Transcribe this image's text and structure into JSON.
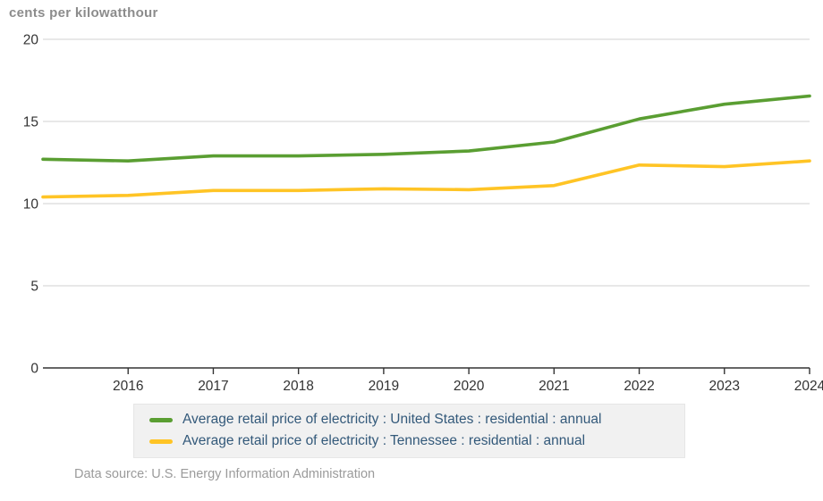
{
  "title": "cents per kilowatthour",
  "source_note": "Data source: U.S. Energy Information Administration",
  "colors": {
    "us_line": "#5a9e32",
    "tn_line": "#ffc425",
    "grid_line": "#d9d9d9",
    "axis_line": "#333333",
    "tick_label": "#333333",
    "title_text": "#8c8c8c",
    "legend_text": "#33597a",
    "legend_bg": "#f1f1f1",
    "source_text": "#9b9b9b"
  },
  "chart_data": {
    "type": "line",
    "x": [
      2015,
      2016,
      2017,
      2018,
      2019,
      2020,
      2021,
      2022,
      2023,
      2024
    ],
    "series": [
      {
        "name": "Average retail price of electricity : United States : residential : annual",
        "color": "#5a9e32",
        "values": [
          12.7,
          12.6,
          12.9,
          12.9,
          13.0,
          13.2,
          13.75,
          15.15,
          16.05,
          16.55
        ]
      },
      {
        "name": "Average retail price of electricity : Tennessee : residential : annual",
        "color": "#ffc425",
        "values": [
          10.4,
          10.5,
          10.8,
          10.8,
          10.9,
          10.85,
          11.1,
          12.35,
          12.25,
          12.6
        ]
      }
    ],
    "title": "cents per kilowatthour",
    "xlabel": "",
    "ylabel": "cents per kilowatthour",
    "ylim": [
      0,
      20
    ],
    "yticks": [
      0,
      5,
      10,
      15,
      20
    ],
    "xtick_labels": [
      "2016",
      "2017",
      "2018",
      "2019",
      "2020",
      "2021",
      "2022",
      "2023",
      "2024"
    ],
    "grid": "horizontal",
    "legend_position": "bottom"
  },
  "legend": {
    "items": [
      {
        "label": "Average retail price of electricity : United States : residential : annual"
      },
      {
        "label": "Average retail price of electricity : Tennessee : residential : annual"
      }
    ]
  }
}
